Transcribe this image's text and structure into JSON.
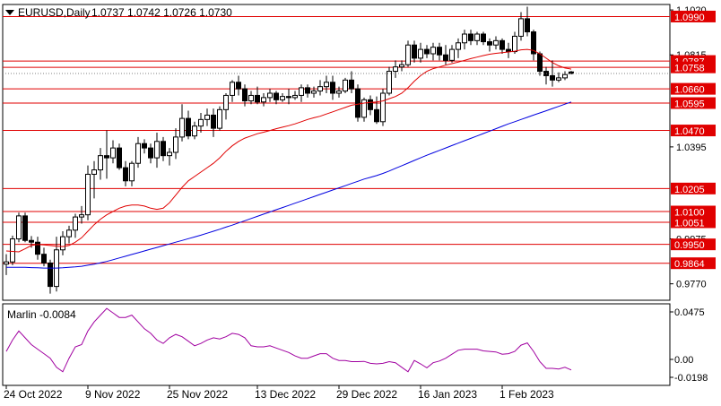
{
  "header": {
    "symbol_label": "EURUSD,Daily",
    "ohlc_label": "1.0737 1.0742 1.0726 1.0730"
  },
  "indicator": {
    "label": "Marlin -0.0084",
    "ticks": [
      "0.0475",
      "0.00",
      "-0.0198"
    ]
  },
  "colors": {
    "candle": "#000000",
    "level_line": "#e00000",
    "level_badge": "#e00000",
    "ma_fast": "#e00000",
    "ma_slow": "#0000e0",
    "oscillator": "#a000a0",
    "background": "#ffffff"
  },
  "chart_data": {
    "type": "candlestick",
    "title": "EURUSD,Daily",
    "ylim": [
      0.9695,
      1.1045
    ],
    "price_axis_ticks": [
      "1.1020",
      "1.0815",
      "1.0395",
      "0.9975",
      "0.9770"
    ],
    "levels": [
      {
        "value": 1.099,
        "label": "1.0990"
      },
      {
        "value": 1.0787,
        "label": "1.0787"
      },
      {
        "value": 1.0758,
        "label": "1.0758"
      },
      {
        "value": 1.066,
        "label": "1.0660"
      },
      {
        "value": 1.0595,
        "label": "1.0595"
      },
      {
        "value": 1.047,
        "label": "1.0470"
      },
      {
        "value": 1.0205,
        "label": "1.0205"
      },
      {
        "value": 1.01,
        "label": "1.0100"
      },
      {
        "value": 1.0051,
        "label": "1.0051"
      },
      {
        "value": 0.995,
        "label": "0.9950"
      },
      {
        "value": 0.9864,
        "label": "0.9864"
      }
    ],
    "current_price": 1.073,
    "x_labels": [
      "24 Oct 2022",
      "9 Nov 2022",
      "25 Nov 2022",
      "13 Dec 2022",
      "29 Dec 2022",
      "16 Jan 2023",
      "1 Feb 2023"
    ],
    "candles": [
      [
        0.986,
        0.9905,
        0.981,
        0.987
      ],
      [
        0.987,
        0.999,
        0.9855,
        0.9975
      ],
      [
        0.9975,
        1.0095,
        0.996,
        1.008
      ],
      [
        1.008,
        1.0095,
        0.996,
        0.9968
      ],
      [
        0.9968,
        0.9988,
        0.9935,
        0.996
      ],
      [
        0.996,
        0.9985,
        0.988,
        0.9905
      ],
      [
        0.9905,
        0.9935,
        0.985,
        0.9865
      ],
      [
        0.9865,
        0.988,
        0.9725,
        0.9758
      ],
      [
        0.9758,
        0.9985,
        0.9735,
        0.9925
      ],
      [
        0.9925,
        1.001,
        0.99,
        0.9985
      ],
      [
        0.9985,
        1.0035,
        0.9955,
        1.0015
      ],
      [
        1.0015,
        1.009,
        0.998,
        1.0075
      ],
      [
        1.0075,
        1.0125,
        1.0045,
        1.0085
      ],
      [
        1.0085,
        1.031,
        1.006,
        1.027
      ],
      [
        1.027,
        1.033,
        1.016,
        1.029
      ],
      [
        1.029,
        1.039,
        1.0245,
        1.0355
      ],
      [
        1.0355,
        1.047,
        1.025,
        1.0345
      ],
      [
        1.0345,
        1.0425,
        1.032,
        1.039
      ],
      [
        1.039,
        1.041,
        1.029,
        1.03
      ],
      [
        1.03,
        1.033,
        1.0215,
        1.024
      ],
      [
        1.024,
        1.033,
        1.0215,
        1.032
      ],
      [
        1.032,
        1.044,
        1.03,
        1.041
      ],
      [
        1.041,
        1.043,
        1.0365,
        1.039
      ],
      [
        1.039,
        1.041,
        1.032,
        1.0345
      ],
      [
        1.0345,
        1.046,
        1.03,
        1.042
      ],
      [
        1.042,
        1.044,
        1.033,
        1.0355
      ],
      [
        1.0355,
        1.039,
        1.031,
        1.037
      ],
      [
        1.037,
        1.048,
        1.034,
        1.044
      ],
      [
        1.044,
        1.059,
        1.042,
        1.0525
      ],
      [
        1.0525,
        1.056,
        1.043,
        1.0445
      ],
      [
        1.0445,
        1.051,
        1.043,
        1.049
      ],
      [
        1.049,
        1.055,
        1.046,
        1.052
      ],
      [
        1.052,
        1.057,
        1.049,
        1.054
      ],
      [
        1.054,
        1.057,
        1.044,
        1.048
      ],
      [
        1.048,
        1.058,
        1.047,
        1.0565
      ],
      [
        1.0565,
        1.064,
        1.052,
        1.063
      ],
      [
        1.063,
        1.07,
        1.06,
        1.069
      ],
      [
        1.069,
        1.072,
        1.063,
        1.066
      ],
      [
        1.066,
        1.068,
        1.058,
        1.0605
      ],
      [
        1.0605,
        1.065,
        1.059,
        1.063
      ],
      [
        1.063,
        1.067,
        1.059,
        1.06
      ],
      [
        1.06,
        1.064,
        1.058,
        1.062
      ],
      [
        1.062,
        1.066,
        1.06,
        1.064
      ],
      [
        1.064,
        1.065,
        1.059,
        1.061
      ],
      [
        1.061,
        1.064,
        1.06,
        1.0625
      ],
      [
        1.0625,
        1.066,
        1.059,
        1.062
      ],
      [
        1.062,
        1.065,
        1.061,
        1.063
      ],
      [
        1.063,
        1.068,
        1.06,
        1.0665
      ],
      [
        1.0665,
        1.068,
        1.062,
        1.064
      ],
      [
        1.064,
        1.067,
        1.062,
        1.065
      ],
      [
        1.065,
        1.07,
        1.063,
        1.067
      ],
      [
        1.067,
        1.072,
        1.064,
        1.069
      ],
      [
        1.069,
        1.072,
        1.061,
        1.064
      ],
      [
        1.064,
        1.067,
        1.062,
        1.065
      ],
      [
        1.065,
        1.071,
        1.064,
        1.07
      ],
      [
        1.07,
        1.074,
        1.064,
        1.066
      ],
      [
        1.066,
        1.068,
        1.051,
        1.053
      ],
      [
        1.053,
        1.062,
        1.051,
        1.061
      ],
      [
        1.061,
        1.063,
        1.054,
        1.0565
      ],
      [
        1.0565,
        1.0625,
        1.05,
        1.051
      ],
      [
        1.051,
        1.066,
        1.049,
        1.064
      ],
      [
        1.064,
        1.076,
        1.063,
        1.074
      ],
      [
        1.074,
        1.079,
        1.071,
        1.076
      ],
      [
        1.076,
        1.079,
        1.074,
        1.077
      ],
      [
        1.077,
        1.088,
        1.076,
        1.086
      ],
      [
        1.086,
        1.088,
        1.078,
        1.08
      ],
      [
        1.08,
        1.087,
        1.078,
        1.084
      ],
      [
        1.084,
        1.086,
        1.08,
        1.082
      ],
      [
        1.082,
        1.087,
        1.079,
        1.085
      ],
      [
        1.085,
        1.087,
        1.079,
        1.0815
      ],
      [
        1.0815,
        1.086,
        1.077,
        1.079
      ],
      [
        1.079,
        1.086,
        1.078,
        1.084
      ],
      [
        1.084,
        1.089,
        1.08,
        1.087
      ],
      [
        1.087,
        1.093,
        1.084,
        1.091
      ],
      [
        1.091,
        1.093,
        1.086,
        1.088
      ],
      [
        1.088,
        1.092,
        1.086,
        1.091
      ],
      [
        1.091,
        1.092,
        1.086,
        1.0875
      ],
      [
        1.0875,
        1.089,
        1.083,
        1.086
      ],
      [
        1.086,
        1.09,
        1.084,
        1.088
      ],
      [
        1.088,
        1.089,
        1.082,
        1.084
      ],
      [
        1.084,
        1.087,
        1.08,
        1.083
      ],
      [
        1.083,
        1.092,
        1.082,
        1.09
      ],
      [
        1.09,
        1.101,
        1.088,
        1.098
      ],
      [
        1.098,
        1.1035,
        1.09,
        1.092
      ],
      [
        1.092,
        1.093,
        1.079,
        1.082
      ],
      [
        1.082,
        1.083,
        1.072,
        1.074
      ],
      [
        1.074,
        1.076,
        1.068,
        1.072
      ],
      [
        1.072,
        1.079,
        1.067,
        1.07
      ],
      [
        1.07,
        1.0735,
        1.069,
        1.071
      ],
      [
        1.071,
        1.074,
        1.07,
        1.0725
      ],
      [
        1.0737,
        1.0742,
        1.0726,
        1.073
      ]
    ],
    "ma_fast": [
      0.992,
      0.9918,
      0.9916,
      0.993,
      0.9945,
      0.995,
      0.9948,
      0.9945,
      0.9942,
      0.994,
      0.9945,
      0.996,
      0.998,
      1.001,
      1.004,
      1.0065,
      1.0085,
      1.01,
      1.0115,
      1.0125,
      1.013,
      1.013,
      1.0125,
      1.0115,
      1.011,
      1.0115,
      1.014,
      1.0175,
      1.021,
      1.024,
      1.026,
      1.028,
      1.03,
      1.032,
      1.0345,
      1.0375,
      1.04,
      1.042,
      1.0435,
      1.0445,
      1.0455,
      1.0462,
      1.047,
      1.0478,
      1.0485,
      1.0492,
      1.05,
      1.051,
      1.052,
      1.0528,
      1.0535,
      1.0545,
      1.0555,
      1.0565,
      1.0575,
      1.0585,
      1.059,
      1.0595,
      1.0598,
      1.06,
      1.0605,
      1.0615,
      1.0625,
      1.064,
      1.0665,
      1.0695,
      1.072,
      1.074,
      1.0752,
      1.076,
      1.0768,
      1.0775,
      1.0782,
      1.079,
      1.0798,
      1.0805,
      1.0812,
      1.0818,
      1.0822,
      1.0825,
      1.0828,
      1.0832,
      1.0838,
      1.084,
      1.0835,
      1.082,
      1.08,
      1.078,
      1.0765,
      1.0755,
      1.075
    ],
    "ma_slow": [
      0.9845,
      0.9845,
      0.9845,
      0.9845,
      0.9844,
      0.9843,
      0.9842,
      0.9842,
      0.9842,
      0.9843,
      0.9845,
      0.9847,
      0.985,
      0.9855,
      0.986,
      0.9866,
      0.9872,
      0.988,
      0.9888,
      0.9896,
      0.9904,
      0.9912,
      0.992,
      0.9928,
      0.9936,
      0.9944,
      0.9952,
      0.996,
      0.9968,
      0.9976,
      0.9984,
      0.9992,
      1.0001,
      1.001,
      1.0019,
      1.0029,
      1.0038,
      1.0048,
      1.0058,
      1.0068,
      1.0078,
      1.0088,
      1.0098,
      1.0108,
      1.0118,
      1.0128,
      1.0138,
      1.0148,
      1.0158,
      1.0168,
      1.0178,
      1.0188,
      1.0198,
      1.0208,
      1.0218,
      1.0228,
      1.0238,
      1.0248,
      1.0256,
      1.0264,
      1.0274,
      1.0285,
      1.0297,
      1.0309,
      1.0321,
      1.0333,
      1.0345,
      1.0357,
      1.0368,
      1.0379,
      1.039,
      1.0401,
      1.0412,
      1.0423,
      1.0434,
      1.0445,
      1.0456,
      1.0467,
      1.0478,
      1.0489,
      1.05,
      1.051,
      1.052,
      1.053,
      1.054,
      1.055,
      1.056,
      1.057,
      1.058,
      1.059,
      1.06
    ],
    "oscillator": [
      0.008,
      0.018,
      0.026,
      0.02,
      0.014,
      0.01,
      0.006,
      0.002,
      -0.006,
      -0.01,
      0.002,
      0.012,
      0.014,
      0.026,
      0.034,
      0.04,
      0.046,
      0.042,
      0.038,
      0.038,
      0.04,
      0.034,
      0.028,
      0.024,
      0.018,
      0.015,
      0.02,
      0.023,
      0.021,
      0.017,
      0.013,
      0.015,
      0.018,
      0.02,
      0.019,
      0.021,
      0.024,
      0.023,
      0.02,
      0.013,
      0.012,
      0.012,
      0.013,
      0.011,
      0.009,
      0.007,
      0.004,
      0.002,
      0.002,
      0.004,
      0.006,
      0.006,
      0.002,
      0.0,
      0.0,
      -0.001,
      -0.001,
      -0.0008,
      -0.0025,
      -0.003,
      -0.0025,
      -0.001,
      -0.002,
      -0.006,
      -0.01,
      0.0,
      -0.003,
      -0.0065,
      -0.002,
      -0.0005,
      0.002,
      0.0055,
      0.009,
      0.01,
      0.01,
      0.01,
      0.0085,
      0.008,
      0.0075,
      0.0055,
      0.006,
      0.008,
      0.0135,
      0.0155,
      0.008,
      -0.001,
      -0.007,
      -0.007,
      -0.0075,
      -0.006,
      -0.0084
    ],
    "oscillator_ylim": [
      -0.022,
      0.05
    ]
  }
}
